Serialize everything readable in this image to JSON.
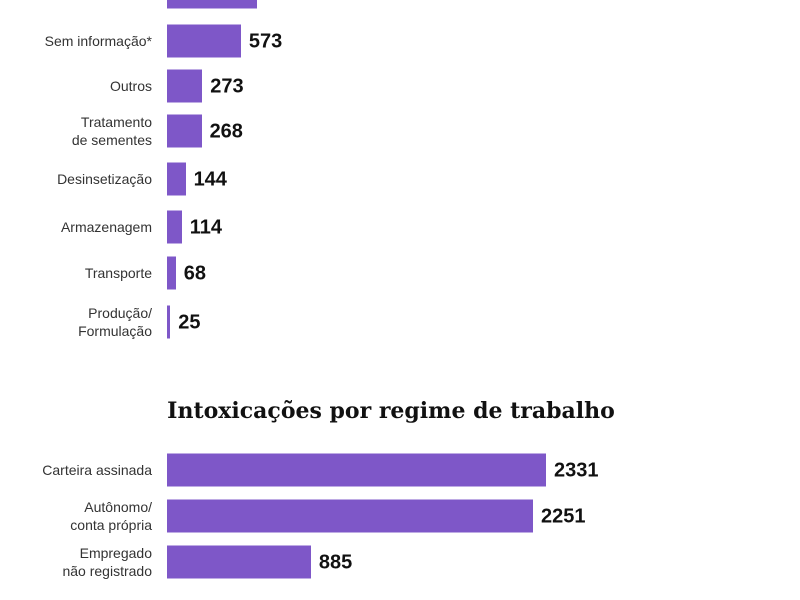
{
  "chart_data": [
    {
      "type": "bar",
      "orientation": "horizontal",
      "title": "",
      "categories": [
        "",
        "Sem informação*",
        "Outros",
        "Tratamento de sementes",
        "Desinsetização",
        "Armazenagem",
        "Transporte",
        "Produção/ Formulação"
      ],
      "labels": [
        [
          ""
        ],
        [
          "Sem informação*"
        ],
        [
          "Outros"
        ],
        [
          "Tratamento",
          "de sementes"
        ],
        [
          "Desinsetização"
        ],
        [
          "Armazenagem"
        ],
        [
          "Transporte"
        ],
        [
          "Produção/",
          "Formulação"
        ]
      ],
      "values": [
        697,
        573,
        273,
        268,
        144,
        114,
        68,
        25
      ],
      "show_value": [
        false,
        true,
        true,
        true,
        true,
        true,
        true,
        true
      ],
      "color": "#7e57c8"
    },
    {
      "type": "bar",
      "orientation": "horizontal",
      "title": "Intoxicações por regime de trabalho",
      "categories": [
        "Carteira assinada",
        "Autônomo/ conta própria",
        "Empregado não registrado"
      ],
      "labels": [
        [
          "Carteira assinada"
        ],
        [
          "Autônomo/",
          "conta própria"
        ],
        [
          "Empregado",
          "não registrado"
        ]
      ],
      "values": [
        2331,
        2251,
        885
      ],
      "color": "#7e57c8"
    }
  ]
}
